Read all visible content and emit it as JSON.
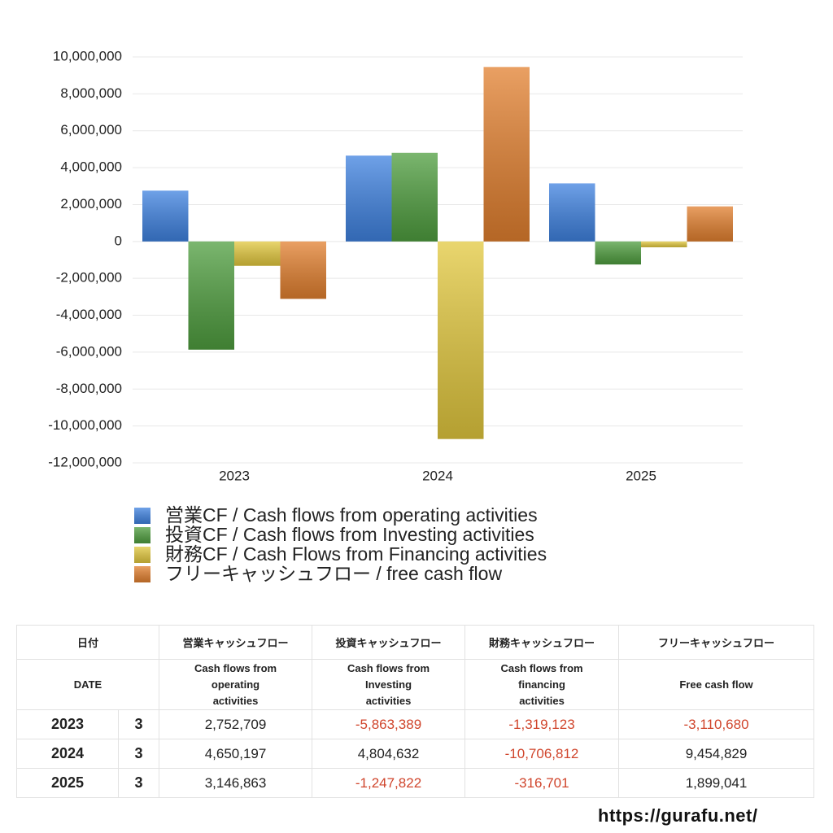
{
  "chart_data": {
    "type": "bar",
    "categories": [
      "2023",
      "2024",
      "2025"
    ],
    "series": [
      {
        "name": "営業CF / Cash flows from operating activities",
        "color": "#3f82e0",
        "values": [
          2752709,
          4650197,
          3146863
        ]
      },
      {
        "name": "投資CF / Cash flows from Investing activities",
        "color": "#4f9e3f",
        "values": [
          -5863389,
          4804632,
          -1247822
        ]
      },
      {
        "name": "財務CF / Cash Flows from Financing activities",
        "color": "#e2c83e",
        "values": [
          -1319123,
          -10706812,
          -316701
        ]
      },
      {
        "name": "フリーキャッシュフロー / free cash flow",
        "color": "#e2802f",
        "values": [
          -3110680,
          9454829,
          1899041
        ]
      }
    ],
    "ylim": [
      -12000000,
      10000000
    ],
    "yticks": [
      {
        "value": 10000000,
        "label": "10,000,000"
      },
      {
        "value": 8000000,
        "label": "8,000,000"
      },
      {
        "value": 6000000,
        "label": "6,000,000"
      },
      {
        "value": 4000000,
        "label": "4,000,000"
      },
      {
        "value": 2000000,
        "label": "2,000,000"
      },
      0,
      {
        "value": -2000000,
        "label": "-2,000,000"
      },
      {
        "value": -4000000,
        "label": "-4,000,000"
      },
      {
        "value": -6000000,
        "label": "-6,000,000"
      },
      {
        "value": -8000000,
        "label": "-8,000,000"
      },
      {
        "value": -10000000,
        "label": "-10,000,000"
      },
      {
        "value": -12000000,
        "label": "-12,000,000"
      }
    ],
    "grid": true,
    "legend": "bottom-left"
  },
  "table": {
    "header_ja": [
      "日付",
      "営業キャッシュフロー",
      "投資キャッシュフロー",
      "財務キャッシュフロー",
      "フリーキャッシュフロー"
    ],
    "header_en": [
      "DATE",
      "Cash flows from operating activities",
      "Cash flows from Investing activities",
      "Cash flows from financing activities",
      "Free cash flow"
    ],
    "rows": [
      {
        "year": "2023",
        "month": "3",
        "values": [
          "2,752,709",
          "-5,863,389",
          "-1,319,123",
          "-3,110,680"
        ]
      },
      {
        "year": "2024",
        "month": "3",
        "values": [
          "4,650,197",
          "4,804,632",
          "-10,706,812",
          "9,454,829"
        ]
      },
      {
        "year": "2025",
        "month": "3",
        "values": [
          "3,146,863",
          "-1,247,822",
          "-316,701",
          "1,899,041"
        ]
      }
    ],
    "negative_color": "#d0452c"
  },
  "footer": "https://gurafu.net/"
}
